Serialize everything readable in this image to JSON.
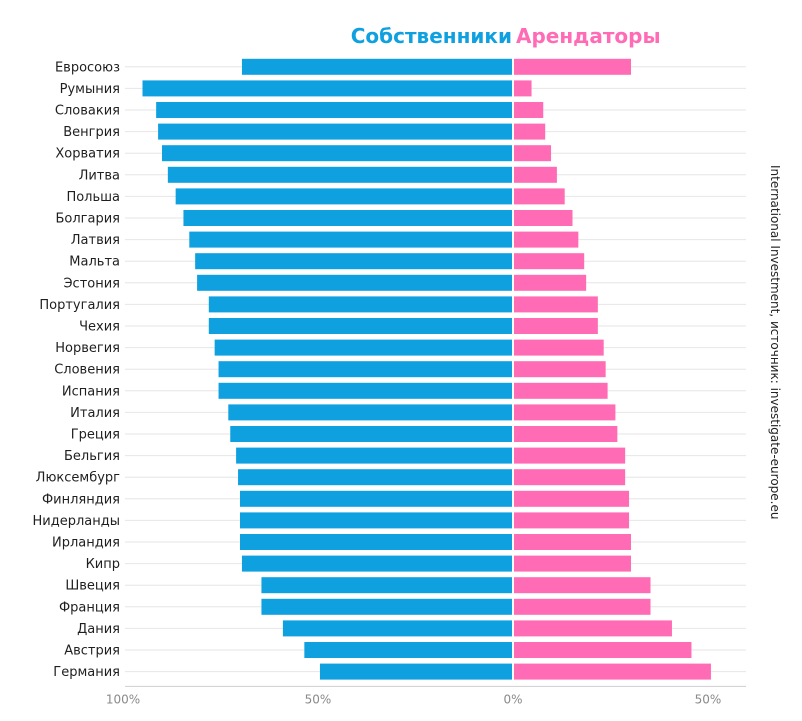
{
  "chart_data": {
    "type": "bar",
    "orientation": "horizontal-diverging",
    "title": "",
    "legend_position": "top-center",
    "colors": {
      "owners": "#0fa0e0",
      "tenants": "#ff6bb5",
      "grid": "#e6e6e6",
      "axis": "#cfcfcf"
    },
    "xlabel": "",
    "ylabel": "",
    "xlim": [
      -100,
      60
    ],
    "x_ticks": [
      {
        "value": -100,
        "label": "100%"
      },
      {
        "value": -50,
        "label": "50%"
      },
      {
        "value": 0,
        "label": "0%"
      },
      {
        "value": 50,
        "label": "50%"
      }
    ],
    "source_note": "International Investment, источник: investigate-europe.eu",
    "categories": [
      "Евросоюз",
      "Румыния",
      "Словакия",
      "Венгрия",
      "Хорватия",
      "Литва",
      "Польша",
      "Болгария",
      "Латвия",
      "Мальта",
      "Эстония",
      "Португалия",
      "Чехия",
      "Норвегия",
      "Словения",
      "Испания",
      "Италия",
      "Греция",
      "Бельгия",
      "Люксембург",
      "Финляндия",
      "Нидерланды",
      "Ирландия",
      "Кипр",
      "Швеция",
      "Франция",
      "Дания",
      "Австрия",
      "Германия"
    ],
    "series": [
      {
        "name": "Собственники",
        "values": [
          69.5,
          95.0,
          91.5,
          91.0,
          90.0,
          88.5,
          86.5,
          84.5,
          83.0,
          81.5,
          81.0,
          78.0,
          78.0,
          76.5,
          75.5,
          75.5,
          73.0,
          72.5,
          71.0,
          70.5,
          70.0,
          70.0,
          70.0,
          69.5,
          64.5,
          64.5,
          59.0,
          53.5,
          49.5
        ]
      },
      {
        "name": "Арендаторы",
        "values": [
          30.0,
          4.5,
          7.5,
          8.0,
          9.5,
          11.0,
          13.0,
          15.0,
          16.5,
          18.0,
          18.5,
          21.5,
          21.5,
          23.0,
          23.5,
          24.0,
          26.0,
          26.5,
          28.5,
          28.5,
          29.5,
          29.5,
          30.0,
          30.0,
          35.0,
          35.0,
          40.5,
          45.5,
          50.5
        ]
      }
    ]
  }
}
